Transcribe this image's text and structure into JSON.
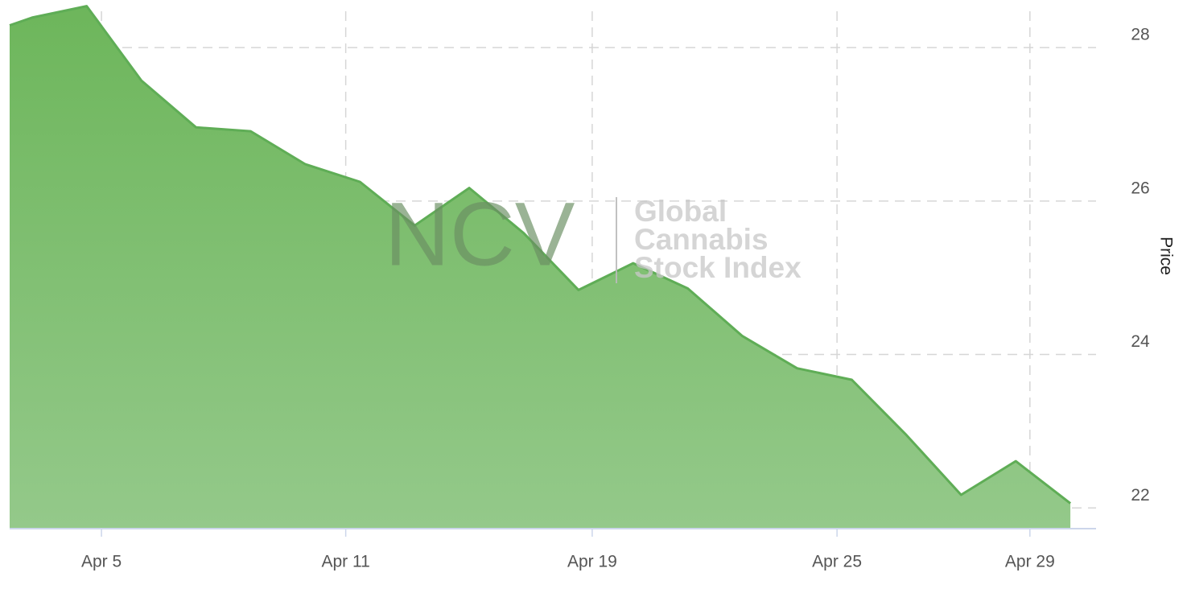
{
  "chart_data": {
    "type": "area",
    "y_axis_label": "Price",
    "watermark": {
      "logo": "NCV",
      "lines": [
        "Global",
        "Cannabis",
        "Stock Index"
      ]
    },
    "x": [
      -0.41,
      0,
      1,
      2,
      3,
      4,
      5,
      6,
      7,
      8,
      9,
      10,
      11,
      12,
      13,
      14,
      15,
      16,
      17,
      18,
      19
    ],
    "series": [
      {
        "name": "Price",
        "color": "#5fad56",
        "values": [
          28.29,
          28.39,
          28.54,
          27.57,
          26.96,
          26.91,
          26.48,
          26.25,
          25.68,
          26.17,
          25.58,
          24.84,
          25.19,
          24.86,
          24.24,
          23.82,
          23.67,
          22.95,
          22.17,
          22.61,
          22.06
        ]
      }
    ],
    "xlim": [
      -0.41,
      19.47
    ],
    "xticks": [
      {
        "value": 1.27,
        "label": "Apr 5"
      },
      {
        "value": 5.74,
        "label": "Apr 11"
      },
      {
        "value": 10.25,
        "label": "Apr 19"
      },
      {
        "value": 14.73,
        "label": "Apr 25"
      },
      {
        "value": 18.26,
        "label": "Apr 29"
      }
    ],
    "ylim": [
      21.73,
      28.62
    ],
    "yticks": [
      22,
      24,
      26,
      28
    ],
    "y_axis_side": "right",
    "grid": true
  }
}
